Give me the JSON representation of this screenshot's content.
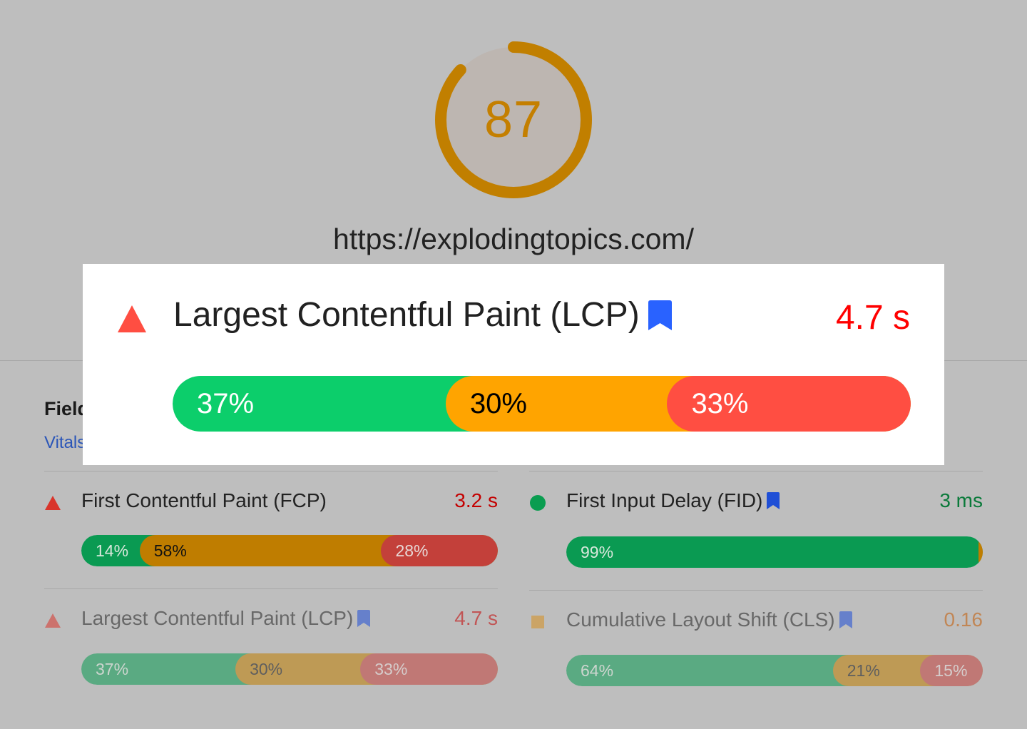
{
  "score": {
    "value": "87",
    "percent": 87,
    "ring_color": "#c17f00",
    "text_color": "#c47f00",
    "track_fill": "#bdb6b1"
  },
  "url": "https://explodingtopics.com/",
  "field_section": {
    "title_partial": "Field",
    "link_partial": "Vitals"
  },
  "colors": {
    "good": "#0cce6b",
    "average": "#ffa400",
    "poor": "#ff4e42",
    "bookmark": "#2962ff"
  },
  "popup": {
    "status": "poor",
    "status_icon": "triangle-icon",
    "name": "Largest Contentful Paint (LCP)",
    "bookmark_icon": "bookmark-icon",
    "value": "4.7 s",
    "distribution": [
      {
        "label": "37%",
        "percent": 37,
        "rating": "good"
      },
      {
        "label": "30%",
        "percent": 30,
        "rating": "average"
      },
      {
        "label": "33%",
        "percent": 33,
        "rating": "poor"
      }
    ]
  },
  "metrics": [
    {
      "id": "fcp",
      "status": "poor",
      "status_icon": "triangle-icon",
      "name": "First Contentful Paint (FCP)",
      "has_bookmark": false,
      "value": "3.2 s",
      "value_color": "#c40000",
      "distribution": [
        {
          "label": "14%",
          "percent": 14,
          "rating": "good"
        },
        {
          "label": "58%",
          "percent": 58,
          "rating": "average"
        },
        {
          "label": "28%",
          "percent": 28,
          "rating": "poor"
        }
      ]
    },
    {
      "id": "fid",
      "status": "good",
      "status_icon": "circle-icon",
      "name": "First Input Delay (FID)",
      "has_bookmark": true,
      "value": "3 ms",
      "value_color": "#0a7a3a",
      "distribution": [
        {
          "label": "99%",
          "percent": 99,
          "rating": "good"
        },
        {
          "label": "1%",
          "percent": 1,
          "rating": "average"
        },
        {
          "label": "1%",
          "percent": 1,
          "rating": "poor"
        }
      ]
    },
    {
      "id": "lcp",
      "status": "poor",
      "status_icon": "triangle-icon",
      "name": "Largest Contentful Paint (LCP)",
      "has_bookmark": true,
      "value": "4.7 s",
      "value_color": "#c40000",
      "distribution": [
        {
          "label": "37%",
          "percent": 37,
          "rating": "good"
        },
        {
          "label": "30%",
          "percent": 30,
          "rating": "average"
        },
        {
          "label": "33%",
          "percent": 33,
          "rating": "poor"
        }
      ]
    },
    {
      "id": "cls",
      "status": "average",
      "status_icon": "square-icon",
      "name": "Cumulative Layout Shift (CLS)",
      "has_bookmark": true,
      "value": "0.16",
      "value_color": "#c45a00",
      "distribution": [
        {
          "label": "64%",
          "percent": 64,
          "rating": "good"
        },
        {
          "label": "21%",
          "percent": 21,
          "rating": "average"
        },
        {
          "label": "15%",
          "percent": 15,
          "rating": "poor"
        }
      ]
    }
  ]
}
